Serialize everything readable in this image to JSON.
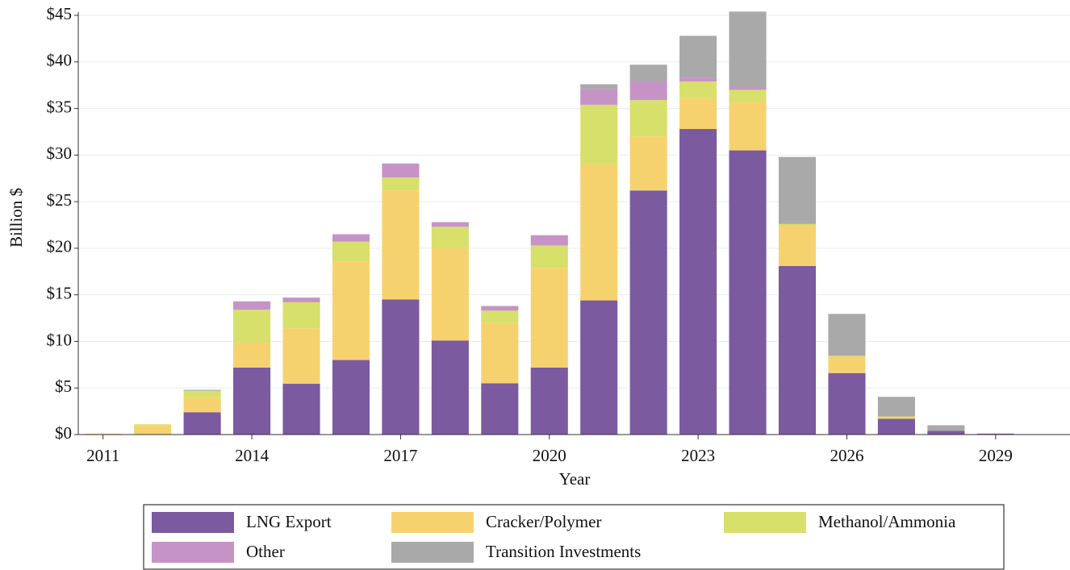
{
  "chart_data": {
    "type": "bar",
    "stacked": true,
    "x_label": "Year",
    "y_label": "Billion $",
    "x": [
      2011,
      2012,
      2013,
      2014,
      2015,
      2016,
      2017,
      2018,
      2019,
      2020,
      2021,
      2022,
      2023,
      2024,
      2025,
      2026,
      2027,
      2028,
      2029
    ],
    "xlim": [
      2010.5,
      2030.5
    ],
    "xticks": [
      2011,
      2014,
      2017,
      2020,
      2023,
      2026,
      2029
    ],
    "ylim": [
      0,
      45
    ],
    "yticks": [
      {
        "value": 0,
        "label": "$0"
      },
      {
        "value": 5,
        "label": "$5"
      },
      {
        "value": 10,
        "label": "$10"
      },
      {
        "value": 15,
        "label": "$15"
      },
      {
        "value": 20,
        "label": "$20"
      },
      {
        "value": 25,
        "label": "$25"
      },
      {
        "value": 30,
        "label": "$30"
      },
      {
        "value": 35,
        "label": "$35"
      },
      {
        "value": 40,
        "label": "$40"
      },
      {
        "value": 45,
        "label": "$45"
      }
    ],
    "grid": true,
    "legend": "bottom",
    "series": [
      {
        "name": "LNG Export",
        "color": "#7b5aa0",
        "values": [
          0,
          0,
          2.4,
          7.2,
          5.45,
          8.0,
          14.5,
          10.1,
          5.5,
          7.2,
          14.4,
          26.2,
          32.8,
          30.5,
          18.1,
          6.6,
          1.7,
          0.4,
          0.1
        ]
      },
      {
        "name": "Cracker/Polymer",
        "color": "#f6d26f",
        "values": [
          0.1,
          1.0,
          1.6,
          2.7,
          5.95,
          10.6,
          11.7,
          9.9,
          6.5,
          10.7,
          14.6,
          5.8,
          3.3,
          5.2,
          4.4,
          1.8,
          0.2,
          0,
          0
        ]
      },
      {
        "name": "Methanol/Ammonia",
        "color": "#d7e06a",
        "values": [
          0,
          0.1,
          0.7,
          3.5,
          2.8,
          2.1,
          1.4,
          2.3,
          1.3,
          2.4,
          6.4,
          3.9,
          1.8,
          1.3,
          0.1,
          0.05,
          0.05,
          0,
          0
        ]
      },
      {
        "name": "Other",
        "color": "#c693c6",
        "values": [
          0,
          0,
          0,
          0.9,
          0.5,
          0.8,
          1.5,
          0.5,
          0.5,
          1.1,
          1.7,
          2.0,
          0.4,
          0.3,
          0,
          0,
          0,
          0,
          0
        ]
      },
      {
        "name": "Transition Investments",
        "color": "#a9a9a9",
        "values": [
          0,
          0,
          0.1,
          0,
          0,
          0,
          0,
          0,
          0,
          0,
          0.5,
          1.8,
          4.5,
          8.1,
          7.2,
          4.5,
          2.1,
          0.6,
          0
        ]
      }
    ]
  }
}
